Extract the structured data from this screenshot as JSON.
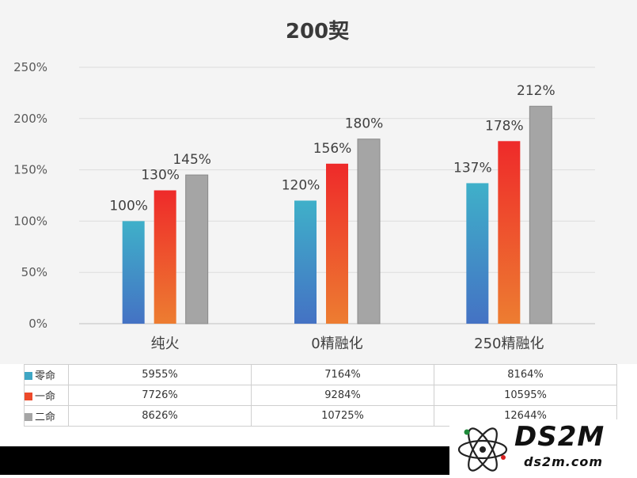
{
  "chart_data": {
    "type": "bar",
    "title": "200契",
    "categories": [
      "纯火",
      "0精融化",
      "250精融化"
    ],
    "series": [
      {
        "name": "零命",
        "values": [
          100,
          120,
          137
        ],
        "data_labels": [
          "100%",
          "120%",
          "137%"
        ],
        "colors": [
          "#3fb0c9",
          "#4472c4"
        ]
      },
      {
        "name": "一命",
        "values": [
          130,
          156,
          178
        ],
        "data_labels": [
          "130%",
          "156%",
          "178%"
        ],
        "colors": [
          "#ee2a2a",
          "#ed7d31"
        ]
      },
      {
        "name": "二命",
        "values": [
          145,
          180,
          212
        ],
        "data_labels": [
          "145%",
          "180%",
          "212%"
        ],
        "colors": [
          "#a5a5a5",
          "#a5a5a5"
        ]
      }
    ],
    "y_ticks": [
      "250%",
      "200%",
      "150%",
      "100%",
      "50%",
      "0%"
    ],
    "ylim": [
      0,
      250
    ],
    "grid": true
  },
  "table": {
    "rows": [
      {
        "label": "零命",
        "color": "#3fa6c4",
        "values": [
          "5955%",
          "7164%",
          "8164%"
        ]
      },
      {
        "label": "一命",
        "color": "#ed4a2a",
        "values": [
          "7726%",
          "9284%",
          "10595%"
        ]
      },
      {
        "label": "二命",
        "color": "#a5a5a5",
        "values": [
          "8626%",
          "10725%",
          "12644%"
        ]
      }
    ]
  },
  "watermark": {
    "logo_text": "DS2M",
    "sub_text": "ds2m.com"
  }
}
